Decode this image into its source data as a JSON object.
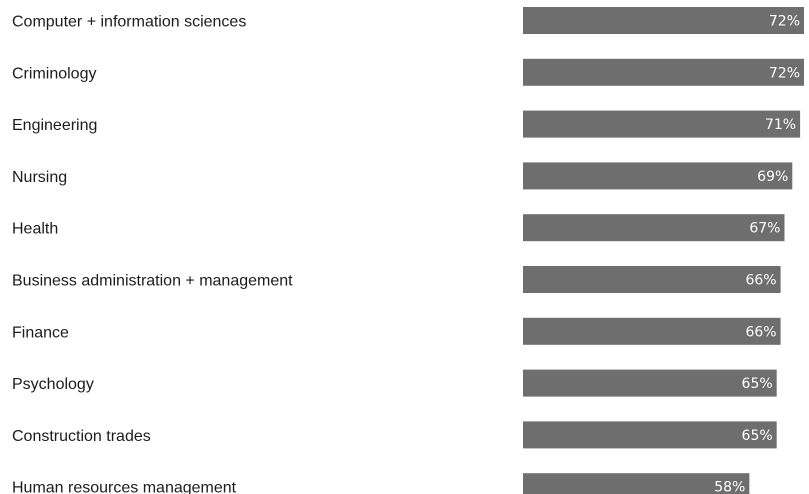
{
  "colors": {
    "bar": "#6e6e6e",
    "label_text": "#1c1c1c",
    "value_text": "#ffffff",
    "background": "#ffffff"
  },
  "chart_data": {
    "type": "bar",
    "orientation": "horizontal",
    "title": "",
    "xlabel": "",
    "ylabel": "",
    "value_suffix": "%",
    "xlim": [
      0,
      72
    ],
    "grid": false,
    "legend": "none",
    "categories": [
      "Computer + information sciences",
      "Criminology",
      "Engineering",
      "Nursing",
      "Health",
      "Business administration + management",
      "Finance",
      "Psychology",
      "Construction trades",
      "Human resources management"
    ],
    "values": [
      72,
      72,
      71,
      69,
      67,
      66,
      66,
      65,
      65,
      58
    ],
    "value_labels": [
      "72%",
      "72%",
      "71%",
      "69%",
      "67%",
      "66%",
      "66%",
      "65%",
      "65%",
      "58%"
    ]
  }
}
